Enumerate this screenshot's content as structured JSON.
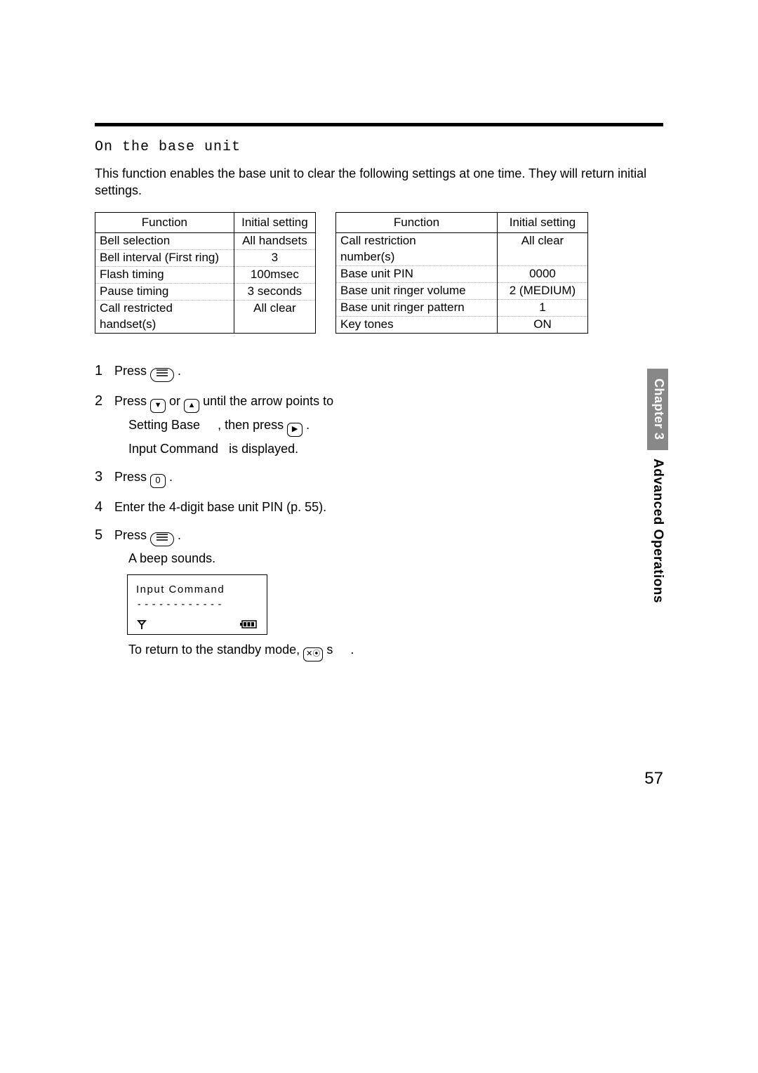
{
  "heading_mono": "On the base unit",
  "intro": "This function enables the base unit to clear the following settings at one time. They will return initial settings.",
  "table_left": {
    "headers": [
      "Function",
      "Initial setting"
    ],
    "rows": [
      {
        "c1": "Bell selection",
        "c2": "All handsets",
        "dotted": true
      },
      {
        "c1": "Bell interval (First ring)",
        "c2": "3",
        "dotted": true
      },
      {
        "c1": "Flash timing",
        "c2": "100msec",
        "dotted": true
      },
      {
        "c1": "Pause timing",
        "c2": "3 seconds",
        "dotted": true
      },
      {
        "c1": "Call restricted",
        "c2": "All clear",
        "dotted": false
      },
      {
        "c1": "handset(s)",
        "c2": "",
        "dotted": false
      }
    ]
  },
  "table_right": {
    "headers": [
      "Function",
      "Initial setting"
    ],
    "rows": [
      {
        "c1": "Call restriction",
        "c2": "All clear",
        "dotted": false
      },
      {
        "c1": "number(s)",
        "c2": "",
        "dotted": true
      },
      {
        "c1": "Base unit PIN",
        "c2": "0000",
        "dotted": true
      },
      {
        "c1": "Base unit ringer volume",
        "c2": "2 (MEDIUM)",
        "dotted": true
      },
      {
        "c1": "Base unit ringer pattern",
        "c2": "1",
        "dotted": true
      },
      {
        "c1": "Key tones",
        "c2": "ON",
        "dotted": false
      }
    ]
  },
  "steps": {
    "s1": {
      "n": "1",
      "a": "Press ",
      "b": "."
    },
    "s2": {
      "n": "2",
      "a": "Press ",
      "mid1": " or ",
      "mid2": " until the arrow points to",
      "line2a": "Setting Base",
      "line2b": "    , then press ",
      "line2c": " .",
      "line3": "Input Command   is displayed."
    },
    "s3": {
      "n": "3",
      "a": "Press ",
      "b": " .",
      "key": "0"
    },
    "s4": {
      "n": "4",
      "t": "Enter the 4-digit base unit PIN (p. 55)."
    },
    "s5": {
      "n": "5",
      "a": "Press ",
      "b": " .",
      "beep": "A beep sounds.",
      "lcd1": "Input Command",
      "lcd2": "------------",
      "ret_a": "To return to the standby mode, ",
      "ret_b": " ",
      "ret_c": "s     ."
    }
  },
  "sidetab": {
    "chapter": "Chapter 3",
    "label": "Advanced Operations"
  },
  "pagenum": "57"
}
